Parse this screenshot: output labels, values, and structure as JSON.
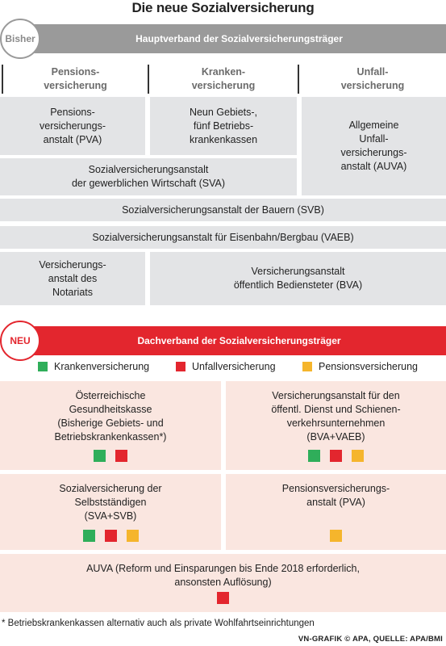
{
  "title": "Die neue Sozialversicherung",
  "colors": {
    "gray_bar": "#9a9a9a",
    "gray_box": "#e3e4e6",
    "red_bar": "#e3262e",
    "pink_box": "#fae6e0",
    "green": "#2fae5a",
    "red": "#e3262e",
    "yellow": "#f5b52c"
  },
  "before": {
    "badge": "Bisher",
    "header": "Hauptverband der Sozialversicherungsträger",
    "columns": [
      "Pensions-\nversicherung",
      "Kranken-\nversicherung",
      "Unfall-\nversicherung"
    ],
    "boxes": {
      "pva": "Pensions-\nversicherungs-\nanstalt (PVA)",
      "gkk": "Neun Gebiets-,\nfünf Betriebs-\nkrankenkassen",
      "auva": "Allgemeine\nUnfall-\nversicherungs-\nanstalt (AUVA)",
      "sva": "Sozialversicherungsanstalt\nder gewerblichen Wirtschaft (SVA)",
      "svb": "Sozialversicherungsanstalt der Bauern (SVB)",
      "vaeb": "Sozialversicherungsanstalt für Eisenbahn/Bergbau (VAEB)",
      "notariat": "Versicherungs-\nanstalt des\nNotariats",
      "bva": "Versicherungsanstalt\nöffentlich Bediensteter (BVA)"
    }
  },
  "after": {
    "badge": "NEU",
    "header": "Dachverband der Sozialversicherungsträger",
    "legend": [
      {
        "label": "Krankenversicherung",
        "color": "green"
      },
      {
        "label": "Unfallversicherung",
        "color": "red"
      },
      {
        "label": "Pensionsversicherung",
        "color": "yellow"
      }
    ],
    "boxes": {
      "oegk": {
        "text": "Österreichische\nGesundheitskasse\n(Bisherige Gebiets- und\nBetriebskrankenkassen*)",
        "squares": [
          "green",
          "red"
        ]
      },
      "bva_vaeb": {
        "text": "Versicherungsanstalt für den\nöffentl. Dienst und Schienen-\nverkehrsunternehmen\n(BVA+VAEB)",
        "squares": [
          "green",
          "red",
          "yellow"
        ]
      },
      "sva_svb": {
        "text": "Sozialversicherung der\nSelbstständigen\n(SVA+SVB)",
        "squares": [
          "green",
          "red",
          "yellow"
        ]
      },
      "pva": {
        "text": "Pensionsversicherungs-\nanstalt (PVA)",
        "squares": [
          "yellow"
        ]
      },
      "auva": {
        "text": "AUVA (Reform und Einsparungen bis Ende 2018 erforderlich,\nansonsten Auflösung)",
        "squares": [
          "red"
        ]
      }
    }
  },
  "footnote": "* Betriebskrankenkassen alternativ auch als private Wohlfahrtseinrichtungen",
  "credit": "VN-GRAFIK © APA, QUELLE: APA/BMI"
}
